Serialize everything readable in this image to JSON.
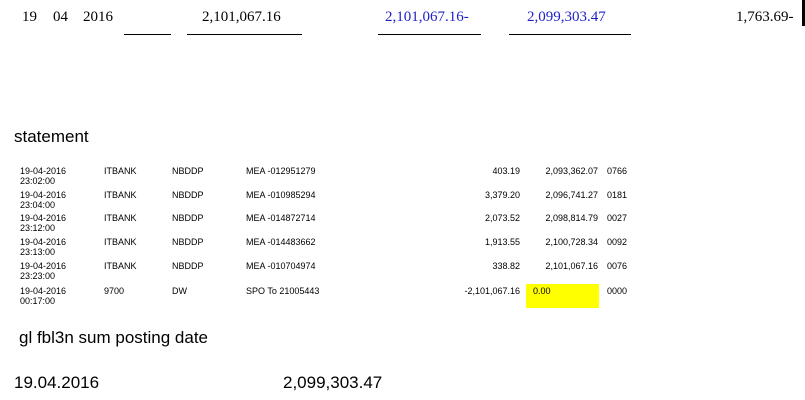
{
  "top_row": {
    "day": "19",
    "month": "04",
    "year": "2016",
    "debit_total": "2,101,067.16",
    "credit_total": "2,101,067.16-",
    "balance": "2,099,303.47",
    "difference": "1,763.69-"
  },
  "statement_heading": "statement",
  "statement_rows": [
    {
      "date": "19-04-2016",
      "time": "23:02:00",
      "channel": "ITBANK",
      "code": "NBDDP",
      "description": "MEA -012951279",
      "amount": "403.19",
      "balance": "2,093,362.07",
      "seq": "0766"
    },
    {
      "date": "19-04-2016",
      "time": "23:04:00",
      "channel": "ITBANK",
      "code": "NBDDP",
      "description": "MEA -010985294",
      "amount": "3,379.20",
      "balance": "2,096,741.27",
      "seq": "0181"
    },
    {
      "date": "19-04-2016",
      "time": "23:12:00",
      "channel": "ITBANK",
      "code": "NBDDP",
      "description": "MEA -014872714",
      "amount": "2,073.52",
      "balance": "2,098,814.79",
      "seq": "0027"
    },
    {
      "date": "19-04-2016",
      "time": "23:13:00",
      "channel": "ITBANK",
      "code": "NBDDP",
      "description": "MEA -014483662",
      "amount": "1,913.55",
      "balance": "2,100,728.34",
      "seq": "0092"
    },
    {
      "date": "19-04-2016",
      "time": "23:23:00",
      "channel": "ITBANK",
      "code": "NBDDP",
      "description": "MEA -010704974",
      "amount": "338.82",
      "balance": "2,101,067.16",
      "seq": "0076"
    },
    {
      "date": "19-04-2016",
      "time": "00:17:00",
      "channel": "9700",
      "code": "DW",
      "description": "SPO To 21005443",
      "amount": "-2,101,067.16",
      "balance": "0.00",
      "seq": "0000",
      "balance_highlight": "#ffff00"
    }
  ],
  "gl_heading": "gl fbl3n sum posting date",
  "gl_summary": {
    "date": "19.04.2016",
    "amount": "2,099,303.47"
  },
  "colors": {
    "blue_text": "#1f1fc8",
    "highlight": "#ffff00"
  }
}
